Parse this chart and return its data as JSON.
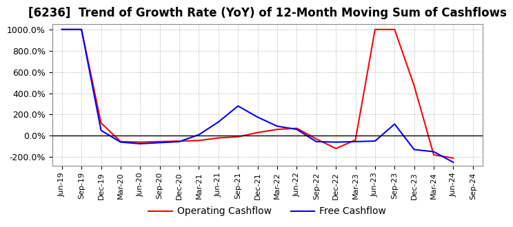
{
  "title": "[6236]  Trend of Growth Rate (YoY) of 12-Month Moving Sum of Cashflows",
  "title_fontsize": 12,
  "background_color": "#ffffff",
  "grid_color": "#aaaaaa",
  "grid_style": ":",
  "ylim": [
    -280,
    1050
  ],
  "yticks": [
    -200,
    0,
    200,
    400,
    600,
    800,
    1000
  ],
  "ytick_labels": [
    "-200.0%",
    "0.0%",
    "200.0%",
    "400.0%",
    "600.0%",
    "800.0%",
    "1000.0%"
  ],
  "operating_color": "#ff0000",
  "free_color": "#0000ff",
  "legend_labels": [
    "Operating Cashflow",
    "Free Cashflow"
  ],
  "x_labels": [
    "Jun-19",
    "Sep-19",
    "Dec-19",
    "Mar-20",
    "Jun-20",
    "Sep-20",
    "Dec-20",
    "Mar-21",
    "Jun-21",
    "Sep-21",
    "Dec-21",
    "Mar-22",
    "Jun-22",
    "Sep-22",
    "Dec-22",
    "Mar-23",
    "Jun-23",
    "Sep-23",
    "Dec-23",
    "Mar-24",
    "Jun-24",
    "Sep-24"
  ],
  "operating_cashflow": [
    1000,
    1000,
    120,
    -55,
    -60,
    -55,
    -50,
    -45,
    -20,
    -10,
    30,
    60,
    70,
    -30,
    -120,
    -40,
    1000,
    1000,
    470,
    -180,
    -210,
    null
  ],
  "free_cashflow": [
    1000,
    1000,
    50,
    -60,
    -75,
    -65,
    -55,
    10,
    130,
    280,
    175,
    90,
    60,
    -55,
    -60,
    -55,
    -50,
    110,
    -130,
    -150,
    -250,
    null
  ]
}
